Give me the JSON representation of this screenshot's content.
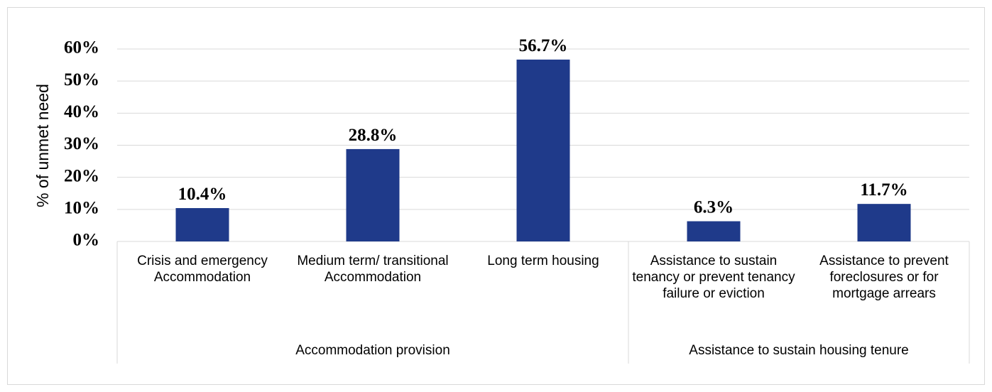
{
  "chart_data": {
    "type": "bar",
    "y_label": "% of unmet need",
    "categories": [
      "Crisis and emergency Accommodation",
      "Medium term/ transitional Accommodation",
      "Long term housing",
      "Assistance to sustain tenancy or prevent tenancy failure or eviction",
      "Assistance to prevent foreclosures or for mortgage arrears"
    ],
    "values": [
      10.4,
      28.8,
      56.7,
      6.3,
      11.7
    ],
    "value_labels": [
      "10.4%",
      "28.8%",
      "56.7%",
      "6.3%",
      "11.7%"
    ],
    "groups": [
      {
        "name": "Accommodation provision",
        "count": 3
      },
      {
        "name": "Assistance to sustain housing tenure",
        "count": 2
      }
    ],
    "color": "#1f3a8a",
    "ylim": [
      0,
      60
    ],
    "yticks": [
      {
        "value": 0,
        "label": "0%"
      },
      {
        "value": 10,
        "label": "10%"
      },
      {
        "value": 20,
        "label": "20%"
      },
      {
        "value": 30,
        "label": "30%"
      },
      {
        "value": 40,
        "label": "40%"
      },
      {
        "value": 50,
        "label": "50%"
      },
      {
        "value": 60,
        "label": "60%"
      }
    ],
    "grid": true
  }
}
